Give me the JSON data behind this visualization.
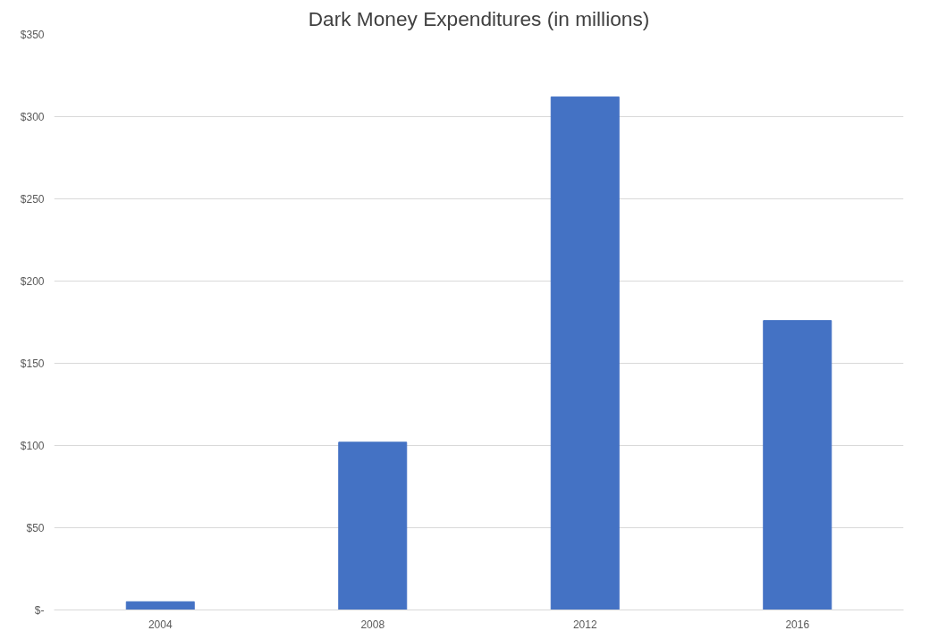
{
  "chart_data": {
    "type": "bar",
    "title": "Dark Money Expenditures (in millions)",
    "categories": [
      "2004",
      "2008",
      "2012",
      "2016"
    ],
    "values": [
      5,
      102,
      312,
      176
    ],
    "color": "#4472c4",
    "ylim": [
      0,
      350
    ],
    "yticks": [
      {
        "value": 0,
        "label": "$-"
      },
      {
        "value": 50,
        "label": "$50"
      },
      {
        "value": 100,
        "label": "$100"
      },
      {
        "value": 150,
        "label": "$150"
      },
      {
        "value": 200,
        "label": "$200"
      },
      {
        "value": 250,
        "label": "$250"
      },
      {
        "value": 300,
        "label": "$300"
      },
      {
        "value": 350,
        "label": "$350"
      }
    ],
    "grid": "y"
  }
}
